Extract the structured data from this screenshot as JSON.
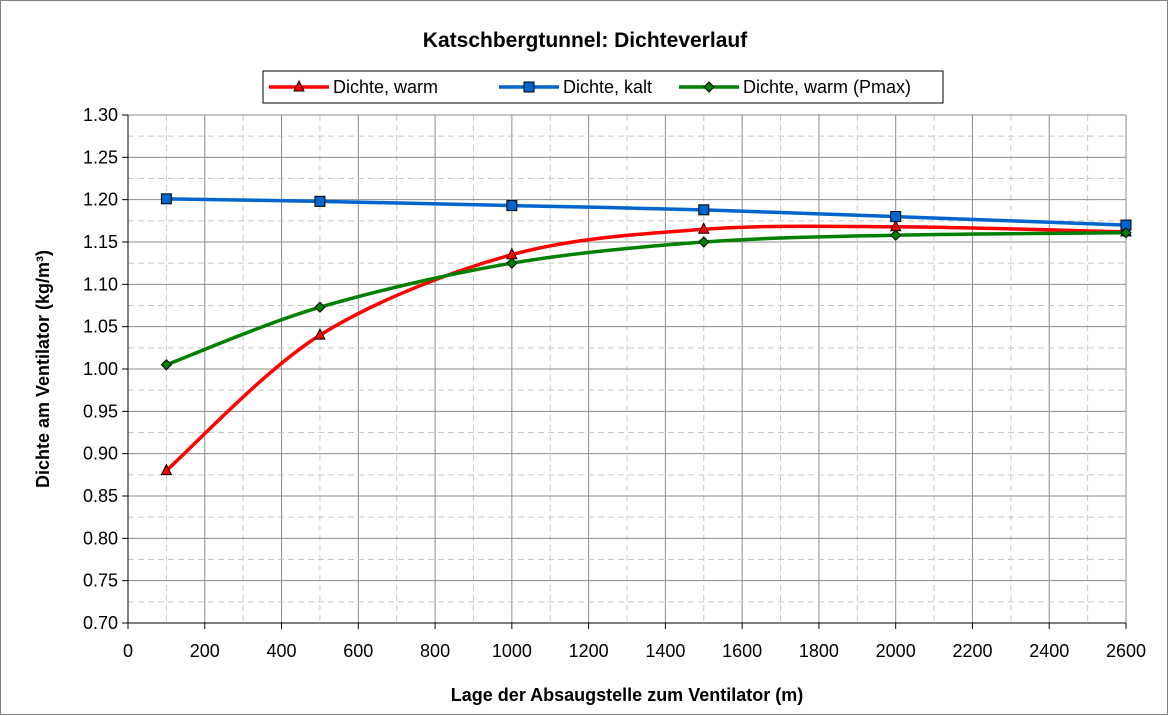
{
  "chart_data": {
    "type": "line",
    "title": "Katschbergtunnel: Dichteverlauf",
    "xlabel": "Lage der Absaugstelle zum Ventilator (m)",
    "ylabel": "Dichte am Ventilator (kg/m³)",
    "xlim": [
      0,
      2600
    ],
    "ylim": [
      0.7,
      1.3
    ],
    "x_ticks": [
      "0",
      "200",
      "400",
      "600",
      "800",
      "1000",
      "1200",
      "1400",
      "1600",
      "1800",
      "2000",
      "2200",
      "2400",
      "2600"
    ],
    "y_ticks": [
      "0.70",
      "0.75",
      "0.80",
      "0.85",
      "0.90",
      "0.95",
      "1.00",
      "1.05",
      "1.10",
      "1.15",
      "1.20",
      "1.25",
      "1.30"
    ],
    "grid": true,
    "legend_position": "top",
    "x": [
      100,
      500,
      1000,
      1500,
      2000,
      2600
    ],
    "series": [
      {
        "name": "Dichte, warm",
        "color": "#ff0000",
        "marker": "triangle",
        "values": [
          0.88,
          1.04,
          1.135,
          1.165,
          1.168,
          1.162
        ]
      },
      {
        "name": "Dichte, kalt",
        "color": "#0066cc",
        "marker": "square",
        "values": [
          1.201,
          1.198,
          1.193,
          1.188,
          1.18,
          1.17
        ]
      },
      {
        "name": "Dichte, warm (Pmax)",
        "color": "#008000",
        "marker": "diamond",
        "values": [
          1.005,
          1.073,
          1.125,
          1.15,
          1.158,
          1.161
        ]
      }
    ]
  }
}
